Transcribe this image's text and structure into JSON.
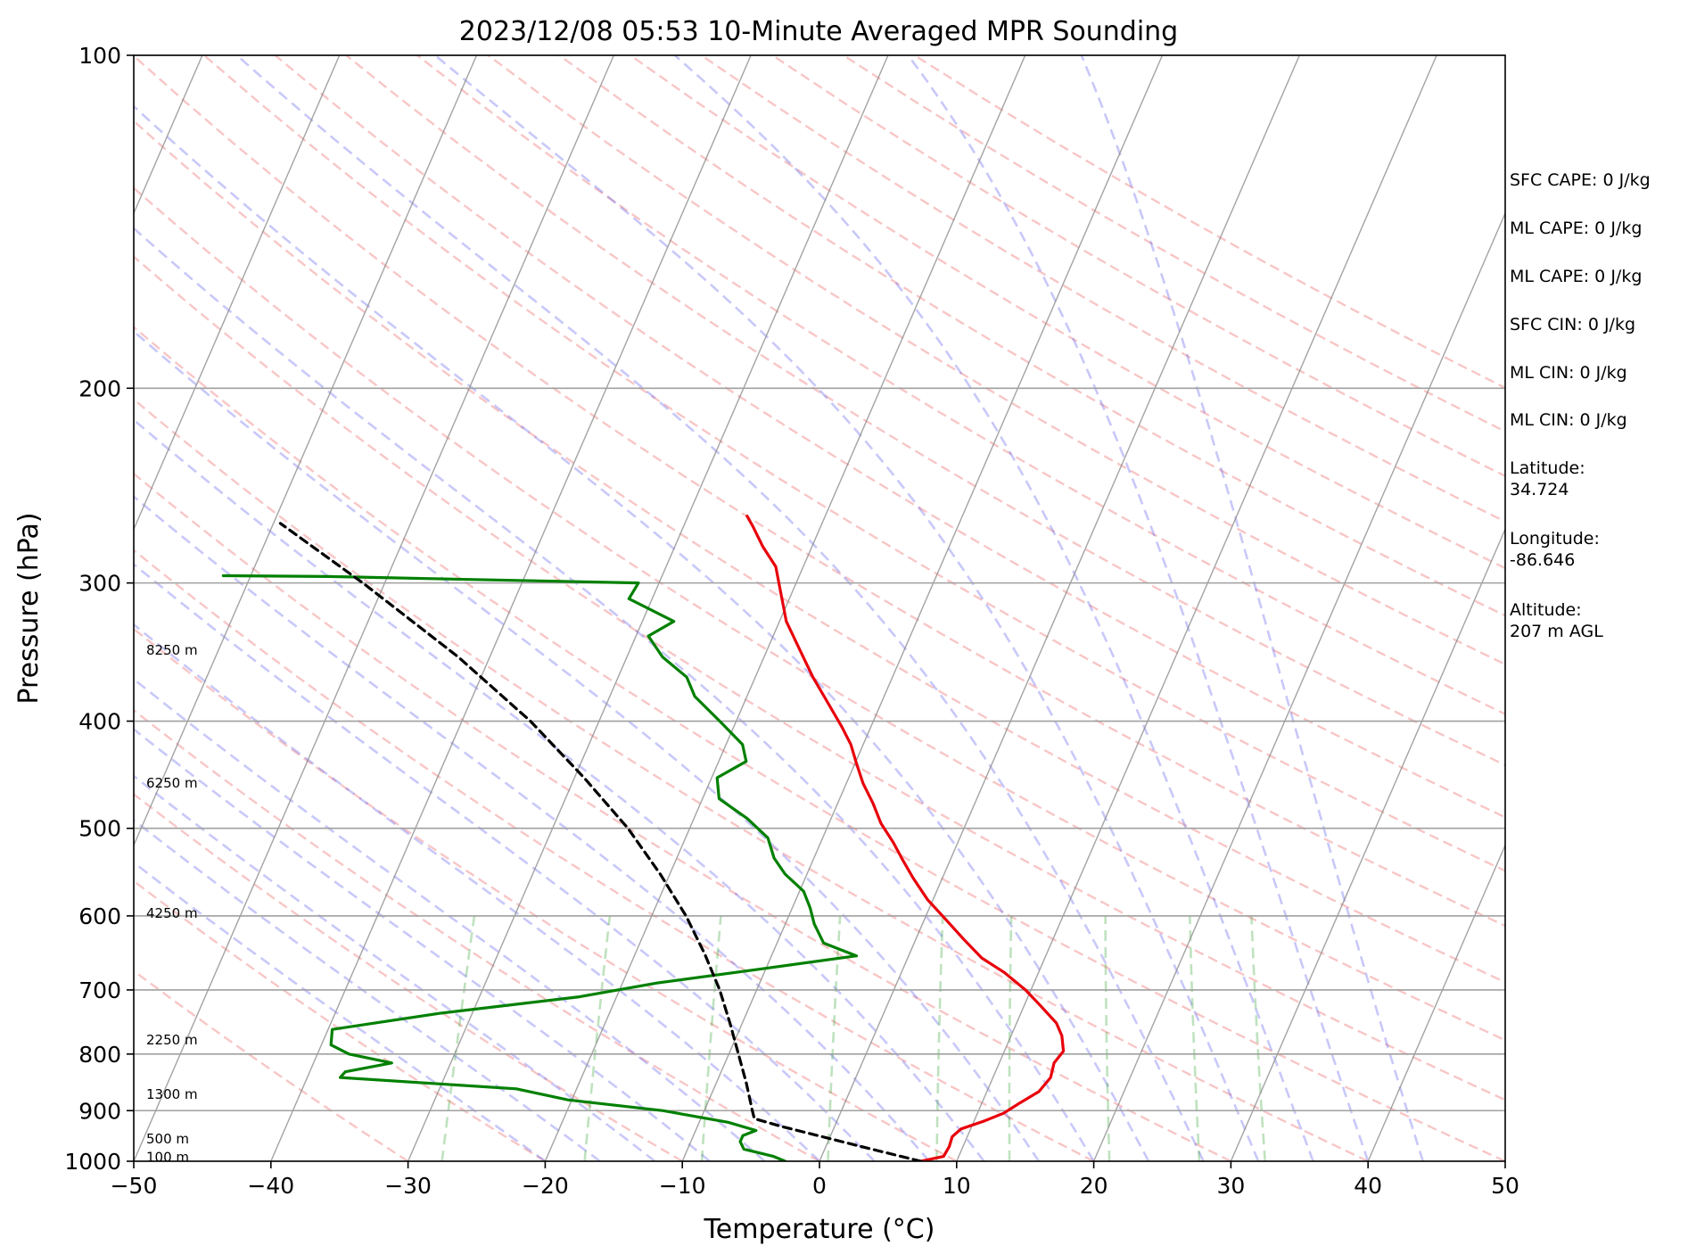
{
  "chart_data": {
    "type": "line",
    "title": "2023/12/08 05:53 10-Minute Averaged MPR Sounding",
    "xlabel": "Temperature (°C)",
    "ylabel": "Pressure (hPa)",
    "xlim": [
      -50,
      50
    ],
    "ylim": [
      1000,
      100
    ],
    "yscale": "log",
    "skew": "isotherms skewed",
    "grid": true,
    "x_ticks": [
      "−50",
      "−40",
      "−30",
      "−20",
      "−10",
      "0",
      "10",
      "20",
      "30",
      "40",
      "50"
    ],
    "x_tick_values": [
      -50,
      -40,
      -30,
      -20,
      -10,
      0,
      10,
      20,
      30,
      40,
      50
    ],
    "y_ticks": [
      "100",
      "200",
      "300",
      "400",
      "500",
      "600",
      "700",
      "800",
      "900",
      "1000"
    ],
    "y_tick_values": [
      100,
      200,
      300,
      400,
      500,
      600,
      700,
      800,
      900,
      1000
    ],
    "height_labels": [
      {
        "text": "8250 m",
        "p": 345
      },
      {
        "text": "6250 m",
        "p": 455
      },
      {
        "text": "4250 m",
        "p": 597
      },
      {
        "text": "2250 m",
        "p": 777
      },
      {
        "text": "1300 m",
        "p": 870
      },
      {
        "text": "500 m",
        "p": 955
      },
      {
        "text": "100 m",
        "p": 992
      }
    ],
    "series": [
      {
        "color": "#e8000b",
        "points": [
          [
            1000,
            7.4
          ],
          [
            990,
            8.9
          ],
          [
            970,
            9.0
          ],
          [
            950,
            8.9
          ],
          [
            935,
            9.3
          ],
          [
            920,
            10.7
          ],
          [
            905,
            11.9
          ],
          [
            885,
            12.8
          ],
          [
            865,
            13.8
          ],
          [
            840,
            14.2
          ],
          [
            815,
            14.0
          ],
          [
            795,
            14.3
          ],
          [
            770,
            13.7
          ],
          [
            750,
            12.9
          ],
          [
            725,
            11.3
          ],
          [
            700,
            9.6
          ],
          [
            675,
            7.5
          ],
          [
            655,
            5.4
          ],
          [
            630,
            3.5
          ],
          [
            605,
            1.6
          ],
          [
            580,
            -0.4
          ],
          [
            555,
            -2.1
          ],
          [
            535,
            -3.4
          ],
          [
            515,
            -4.7
          ],
          [
            495,
            -6.2
          ],
          [
            475,
            -7.4
          ],
          [
            455,
            -8.8
          ],
          [
            435,
            -10.0
          ],
          [
            420,
            -10.9
          ],
          [
            405,
            -12.1
          ],
          [
            385,
            -13.9
          ],
          [
            365,
            -15.8
          ],
          [
            345,
            -17.6
          ],
          [
            325,
            -19.5
          ],
          [
            305,
            -20.9
          ],
          [
            290,
            -22.0
          ],
          [
            278,
            -23.6
          ],
          [
            267,
            -24.9
          ],
          [
            261,
            -25.7
          ]
        ]
      },
      {
        "color": "#008000",
        "points": [
          [
            1000,
            -2.5
          ],
          [
            990,
            -3.5
          ],
          [
            975,
            -5.9
          ],
          [
            960,
            -6.4
          ],
          [
            948,
            -6.4
          ],
          [
            938,
            -5.6
          ],
          [
            922,
            -7.9
          ],
          [
            900,
            -13.0
          ],
          [
            880,
            -20.3
          ],
          [
            860,
            -24.4
          ],
          [
            840,
            -37.6
          ],
          [
            830,
            -37.4
          ],
          [
            815,
            -34.3
          ],
          [
            800,
            -37.7
          ],
          [
            785,
            -39.3
          ],
          [
            760,
            -39.7
          ],
          [
            735,
            -32.4
          ],
          [
            710,
            -22.7
          ],
          [
            690,
            -17.5
          ],
          [
            670,
            -10.3
          ],
          [
            652,
            -3.8
          ],
          [
            635,
            -6.6
          ],
          [
            610,
            -7.9
          ],
          [
            590,
            -8.7
          ],
          [
            570,
            -9.7
          ],
          [
            550,
            -11.6
          ],
          [
            532,
            -12.9
          ],
          [
            510,
            -14.0
          ],
          [
            490,
            -16.1
          ],
          [
            470,
            -18.8
          ],
          [
            450,
            -19.6
          ],
          [
            435,
            -18.0
          ],
          [
            420,
            -18.8
          ],
          [
            400,
            -21.2
          ],
          [
            380,
            -23.8
          ],
          [
            365,
            -25.0
          ],
          [
            350,
            -27.4
          ],
          [
            335,
            -29.1
          ],
          [
            325,
            -27.7
          ],
          [
            310,
            -31.7
          ],
          [
            300,
            -31.5
          ],
          [
            296,
            -54.3
          ],
          [
            295.5,
            -62.0
          ]
        ]
      },
      {
        "color": "#000000",
        "dashed": true,
        "points": [
          [
            1000,
            7.4
          ],
          [
            990,
            5.8
          ],
          [
            970,
            2.6
          ],
          [
            950,
            -0.6
          ],
          [
            930,
            -3.9
          ],
          [
            915,
            -6.1
          ],
          [
            900,
            -6.5
          ],
          [
            850,
            -7.8
          ],
          [
            800,
            -9.3
          ],
          [
            750,
            -10.9
          ],
          [
            700,
            -12.7
          ],
          [
            650,
            -14.9
          ],
          [
            600,
            -17.5
          ],
          [
            550,
            -20.7
          ],
          [
            500,
            -24.5
          ],
          [
            450,
            -29.3
          ],
          [
            400,
            -35.0
          ],
          [
            350,
            -42.3
          ],
          [
            300,
            -51.6
          ],
          [
            265,
            -59.5
          ]
        ]
      }
    ]
  },
  "info": {
    "sfc_cape": "SFC CAPE: 0 J/kg",
    "ml_cape_1": "ML CAPE: 0 J/kg",
    "ml_cape_2": "ML CAPE: 0 J/kg",
    "sfc_cin": "SFC CIN: 0 J/kg",
    "ml_cin_1": "ML CIN: 0 J/kg",
    "ml_cin_2": "ML CIN: 0 J/kg",
    "latitude": "Latitude:\n34.724",
    "longitude": "Longitude:\n-86.646",
    "altitude": "Altitude:\n207 m AGL"
  }
}
